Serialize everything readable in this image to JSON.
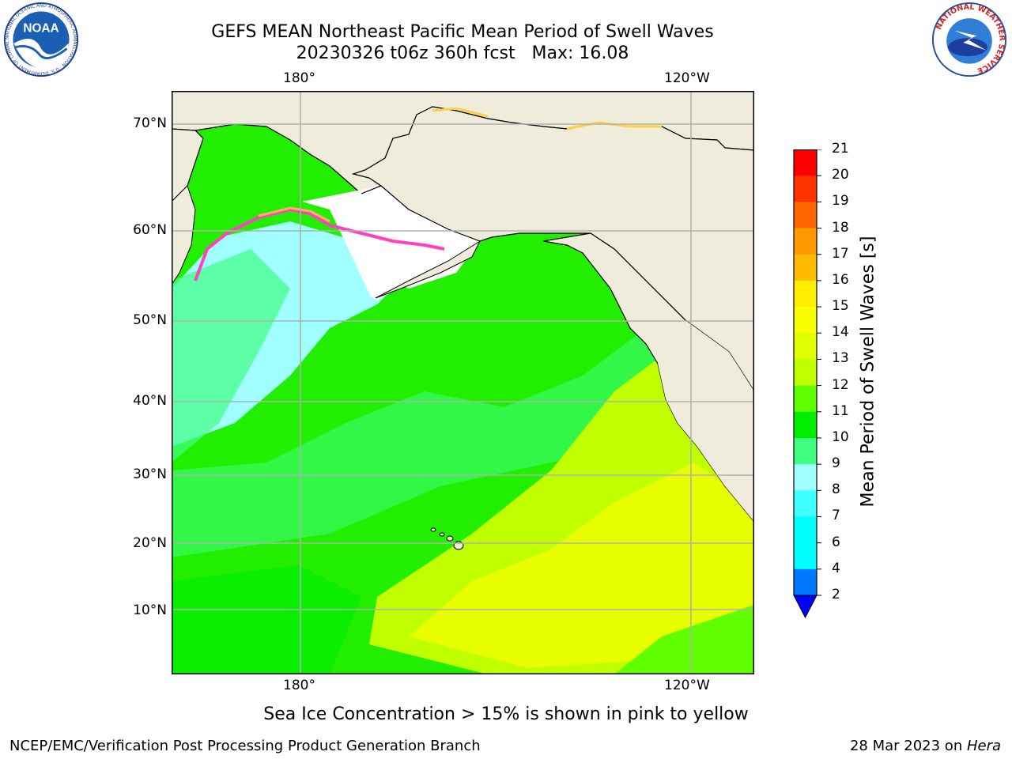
{
  "title": {
    "line1": "GEFS MEAN Northeast Pacific Mean Period of Swell Waves",
    "line2": "20230326 t06z 360h fcst   Max: 16.08"
  },
  "logos": {
    "left": {
      "name": "noaa-logo",
      "text": "NOAA",
      "ring_text": "NATIONAL OCEANIC AND ATMOSPHERIC ADMINISTRATION · U.S. DEPARTMENT OF COMMERCE"
    },
    "right": {
      "name": "nws-logo",
      "ring_text": "NATIONAL WEATHER SERVICE"
    }
  },
  "map": {
    "lon_labels_top": [
      "180°",
      "120°W"
    ],
    "lon_labels_bottom": [
      "180°",
      "120°W"
    ],
    "lat_labels": [
      "70°N",
      "60°N",
      "50°N",
      "40°N",
      "30°N",
      "20°N",
      "10°N"
    ],
    "colors": {
      "land": "#efecdc",
      "grid": "#b0b0b0",
      "coast": "#000000"
    }
  },
  "colorbar": {
    "label": "Mean Period of Swell Waves [s]",
    "ticks": [
      "21",
      "20",
      "19",
      "18",
      "17",
      "16",
      "15",
      "14",
      "13",
      "12",
      "11",
      "10",
      "9",
      "8",
      "7",
      "6",
      "4",
      "2"
    ],
    "colors": [
      "#0000ff",
      "#0077ff",
      "#00ffff",
      "#00ffff",
      "#40ffff",
      "#a0ffff",
      "#40ff80",
      "#00ee00",
      "#60ff00",
      "#c0ff00",
      "#e0ff00",
      "#f8ff00",
      "#ffee00",
      "#ffbb00",
      "#ff9900",
      "#ff6600",
      "#ff3300",
      "#ff0000"
    ]
  },
  "note": "Sea Ice Concentration > 15% is shown in pink to yellow",
  "footer": {
    "left": "NCEP/EMC/Verification Post Processing Product Generation Branch",
    "right_prefix": "28 Mar 2023 on ",
    "right_host": "Hera"
  }
}
